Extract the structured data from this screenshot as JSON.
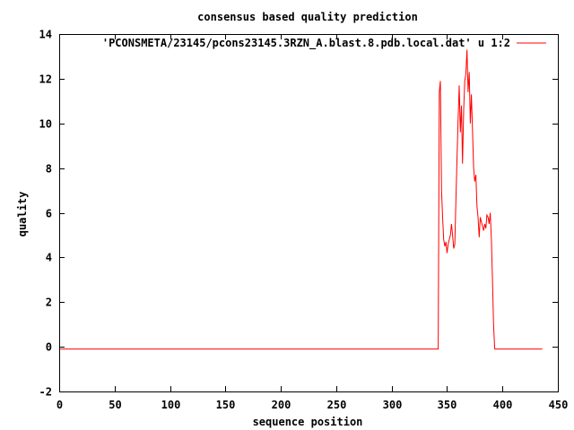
{
  "chart_data": {
    "type": "line",
    "title": "consensus based quality prediction",
    "xlabel": "sequence position",
    "ylabel": "quality",
    "xlim": [
      0,
      450
    ],
    "ylim": [
      -2,
      14
    ],
    "xticks": [
      0,
      50,
      100,
      150,
      200,
      250,
      300,
      350,
      400,
      450
    ],
    "yticks": [
      -2,
      0,
      2,
      4,
      6,
      8,
      10,
      12,
      14
    ],
    "grid": false,
    "legend_position": "top-right",
    "series": [
      {
        "name": "'PCONSMETA/23145/pcons23145.3RZN_A.blast.8.pdb.local.dat' u 1:2",
        "color": "#ff0000",
        "x": [
          1,
          342,
          343,
          344,
          345,
          346,
          347,
          348,
          349,
          350,
          351,
          352,
          353,
          354,
          355,
          356,
          357,
          358,
          359,
          360,
          361,
          362,
          363,
          364,
          365,
          366,
          367,
          368,
          369,
          370,
          371,
          372,
          373,
          374,
          375,
          376,
          377,
          378,
          379,
          380,
          381,
          382,
          383,
          384,
          385,
          386,
          387,
          388,
          389,
          390,
          391,
          392,
          393,
          394,
          395,
          396,
          397,
          436
        ],
        "y": [
          -0.1,
          -0.1,
          11.4,
          11.9,
          7.0,
          5.8,
          4.8,
          4.5,
          4.7,
          4.2,
          4.6,
          4.8,
          5.0,
          5.5,
          5.0,
          4.4,
          4.6,
          6.5,
          8.5,
          10.2,
          11.7,
          9.6,
          10.8,
          8.2,
          10.6,
          11.9,
          12.2,
          13.3,
          11.4,
          12.3,
          10.0,
          11.3,
          9.6,
          8.0,
          7.4,
          7.7,
          6.3,
          5.8,
          4.9,
          5.8,
          5.6,
          5.4,
          5.2,
          5.5,
          5.3,
          5.9,
          5.8,
          5.5,
          6.0,
          4.8,
          3.0,
          1.0,
          -0.1,
          -0.1,
          -0.1,
          -0.1,
          -0.1,
          -0.1
        ]
      }
    ]
  }
}
